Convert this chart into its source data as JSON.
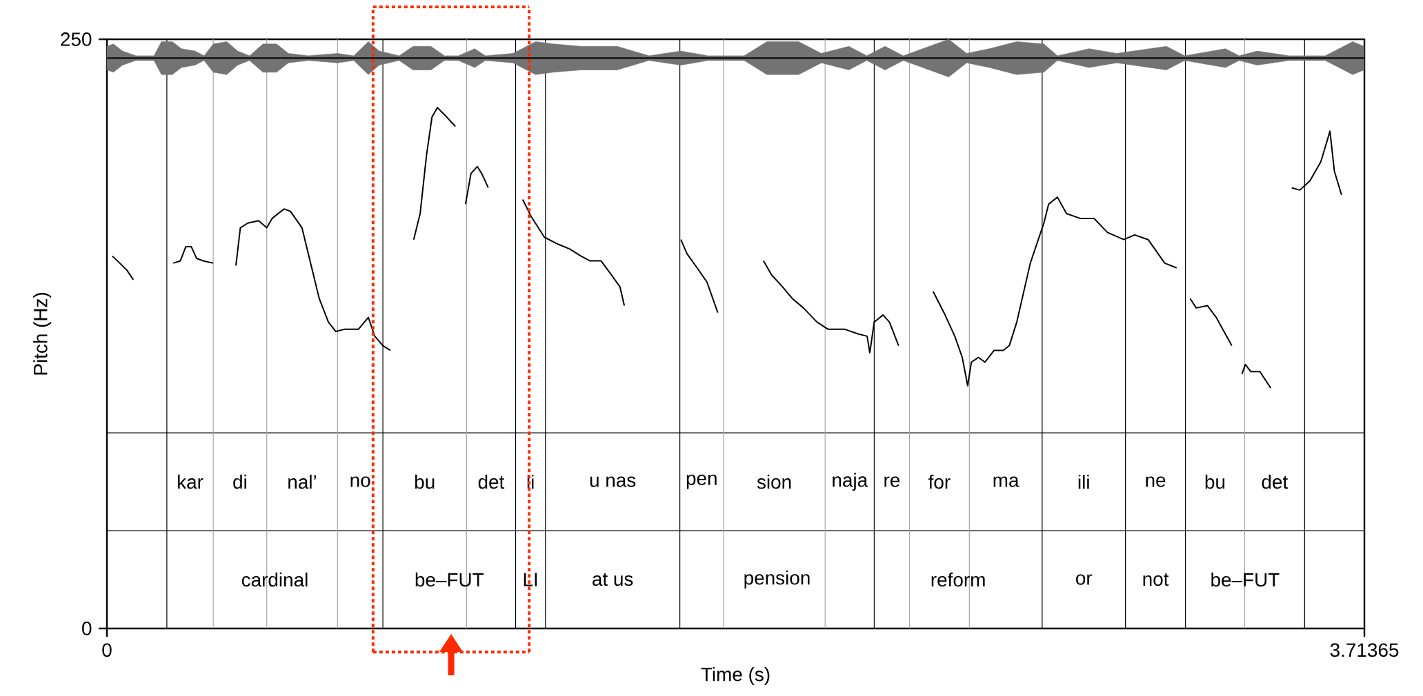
{
  "chart_data": {
    "type": "line",
    "xlabel": "Time (s)",
    "ylabel": "Pitch (Hz)",
    "xlim": [
      0,
      3.71365
    ],
    "ylim": [
      0,
      250
    ],
    "xticks": [
      0,
      3.71365
    ],
    "yticks": [
      0,
      250
    ],
    "series": [
      {
        "color": "#000000",
        "x": [
          0.016,
          0.038,
          0.059,
          0.078,
          null,
          0.196,
          0.217,
          0.233,
          0.249,
          0.265,
          0.284,
          0.314,
          null,
          0.381,
          0.394,
          0.416,
          0.448,
          0.472,
          0.488,
          0.523,
          0.542,
          0.576,
          0.627,
          0.654,
          0.676,
          0.703,
          0.743,
          0.772,
          0.791,
          0.815,
          0.837,
          null,
          0.906,
          0.925,
          0.944,
          0.96,
          0.976,
          0.997,
          1.029,
          null,
          1.059,
          1.075,
          1.094,
          1.107,
          1.126,
          null,
          1.228,
          1.252,
          1.292,
          1.333,
          1.367,
          1.4,
          1.426,
          1.459,
          1.485,
          1.515,
          1.528,
          null,
          1.695,
          1.713,
          1.743,
          1.772,
          1.804,
          null,
          1.939,
          1.963,
          1.995,
          2.024,
          2.057,
          2.097,
          2.129,
          2.178,
          2.218,
          2.245,
          2.253,
          2.266,
          2.292,
          2.311,
          2.338,
          null,
          2.44,
          2.472,
          2.504,
          2.526,
          2.542,
          2.553,
          2.574,
          2.593,
          2.62,
          2.647,
          2.665,
          2.687,
          2.727,
          2.767,
          2.781,
          2.807,
          2.834,
          2.874,
          2.915,
          2.955,
          3.003,
          3.035,
          3.075,
          3.124,
          3.159,
          null,
          3.199,
          3.217,
          3.25,
          3.276,
          3.322,
          null,
          3.352,
          3.362,
          3.378,
          3.405,
          3.437,
          null,
          3.499,
          3.523,
          3.553,
          3.585,
          3.612,
          3.625,
          3.646
        ],
        "values": [
          158,
          155,
          152,
          148,
          null,
          155,
          156,
          162,
          162,
          157,
          156,
          155,
          null,
          154,
          170,
          172,
          173,
          170,
          174,
          178,
          177,
          170,
          140,
          130,
          126,
          127,
          127,
          132,
          124,
          120,
          118,
          null,
          165,
          176,
          201,
          217,
          221,
          218,
          213,
          null,
          180,
          193,
          196,
          193,
          187,
          null,
          182,
          175,
          166,
          163,
          161,
          158,
          156,
          156,
          151,
          145,
          137,
          null,
          165,
          159,
          153,
          147,
          134,
          null,
          156,
          150,
          145,
          140,
          136,
          130,
          127,
          127,
          125,
          124,
          117,
          130,
          133,
          130,
          120,
          null,
          143,
          134,
          124,
          115,
          103,
          113,
          115,
          113,
          118,
          118,
          120,
          130,
          155,
          172,
          180,
          183,
          176,
          174,
          174,
          168,
          165,
          167,
          165,
          155,
          153,
          null,
          140,
          136,
          137,
          132,
          120,
          null,
          108,
          112,
          109,
          109,
          102,
          null,
          187,
          186,
          190,
          198,
          211,
          194,
          184
        ]
      },
      {
        "color": "#000000",
        "x": [
          0.0,
          0.019,
          0.046,
          0.086,
          0.139,
          0.161,
          0.193,
          0.22,
          0.26,
          0.287,
          0.314,
          0.354,
          0.386,
          0.421,
          0.461,
          0.501,
          0.536,
          0.595,
          0.681,
          0.729,
          0.772,
          0.804,
          0.863,
          0.904,
          0.957,
          0.997,
          1.038,
          1.086,
          1.118,
          1.199,
          1.266,
          1.319,
          1.4,
          1.507,
          1.601,
          1.695,
          1.775,
          1.882,
          1.949,
          2.043,
          2.11,
          2.191,
          2.244,
          2.298,
          2.352,
          2.486,
          2.539,
          2.606,
          2.687,
          2.767,
          2.807,
          2.901,
          2.982,
          3.129,
          3.183,
          3.303,
          3.344,
          3.397,
          3.491,
          3.598,
          3.679,
          3.713
        ],
        "values": [
          242,
          242,
          242,
          242,
          242,
          242,
          242,
          242,
          242,
          242,
          242,
          242,
          242,
          242,
          242,
          242,
          242,
          242,
          242,
          242,
          242,
          242,
          242,
          242,
          242,
          242,
          242,
          242,
          242,
          242,
          242,
          242,
          242,
          242,
          242,
          242,
          242,
          242,
          242,
          242,
          242,
          242,
          242,
          242,
          242,
          242,
          242,
          242,
          242,
          242,
          242,
          242,
          242,
          242,
          242,
          242,
          242,
          242,
          242,
          242,
          242,
          242
        ],
        "lower": [
          237,
          236,
          239,
          241,
          241,
          235,
          235,
          238,
          239,
          241,
          236,
          235,
          239,
          241,
          236,
          236,
          240,
          241,
          240,
          241,
          235,
          239,
          241,
          237,
          237,
          241,
          241,
          238,
          241,
          240,
          235,
          236,
          237,
          237,
          241,
          239,
          241,
          241,
          235,
          235,
          240,
          237,
          241,
          237,
          241,
          234,
          240,
          238,
          235,
          236,
          241,
          238,
          240,
          237,
          241,
          238,
          241,
          239,
          241,
          241,
          235,
          237
        ],
        "upper": [
          247,
          248,
          245,
          243,
          243,
          249,
          249,
          246,
          245,
          243,
          248,
          249,
          245,
          243,
          248,
          248,
          244,
          243,
          244,
          243,
          249,
          245,
          243,
          247,
          247,
          243,
          243,
          246,
          243,
          244,
          249,
          248,
          247,
          247,
          243,
          245,
          243,
          243,
          249,
          249,
          244,
          247,
          243,
          247,
          243,
          250,
          244,
          246,
          249,
          248,
          243,
          246,
          244,
          247,
          243,
          246,
          243,
          245,
          243,
          243,
          249,
          247
        ]
      }
    ],
    "ref_lines": [
      {
        "axis": "y",
        "value": 83,
        "color": "#000000"
      },
      {
        "axis": "y",
        "value": 41.5,
        "color": "#000000"
      },
      {
        "axis": "x",
        "value": 0.177,
        "color": "#000000"
      },
      {
        "axis": "x",
        "value": 0.314,
        "color": "#a6a6a6"
      },
      {
        "axis": "x",
        "value": 0.472,
        "color": "#a6a6a6"
      },
      {
        "axis": "x",
        "value": 0.681,
        "color": "#a6a6a6"
      },
      {
        "axis": "x",
        "value": 0.815,
        "color": "#000000"
      },
      {
        "axis": "x",
        "value": 1.062,
        "color": "#a6a6a6"
      },
      {
        "axis": "x",
        "value": 1.207,
        "color": "#000000"
      },
      {
        "axis": "x",
        "value": 1.295,
        "color": "#000000"
      },
      {
        "axis": "x",
        "value": 1.692,
        "color": "#000000"
      },
      {
        "axis": "x",
        "value": 1.821,
        "color": "#a6a6a6"
      },
      {
        "axis": "x",
        "value": 2.121,
        "color": "#a6a6a6"
      },
      {
        "axis": "x",
        "value": 2.266,
        "color": "#000000"
      },
      {
        "axis": "x",
        "value": 2.37,
        "color": "#a6a6a6"
      },
      {
        "axis": "x",
        "value": 2.547,
        "color": "#a6a6a6"
      },
      {
        "axis": "x",
        "value": 2.762,
        "color": "#000000"
      },
      {
        "axis": "x",
        "value": 3.008,
        "color": "#000000"
      },
      {
        "axis": "x",
        "value": 3.185,
        "color": "#000000"
      },
      {
        "axis": "x",
        "value": 3.36,
        "color": "#a6a6a6"
      },
      {
        "axis": "x",
        "value": 3.537,
        "color": "#000000"
      },
      {
        "axis": "x",
        "value": 0.786,
        "color": "#ff2a00",
        "line_style": "dotted"
      },
      {
        "axis": "x",
        "value": 1.247,
        "color": "#ff2a00",
        "line_style": "dotted"
      }
    ],
    "annotations": [
      "kar",
      "di",
      "nal’",
      "no",
      "bu",
      "det",
      "li",
      "u nas",
      "pen",
      "sion",
      "naja",
      "re",
      "for",
      "ma",
      "ili",
      "ne",
      "bu",
      "det",
      "cardinal",
      "be–FUT",
      "LI",
      "at us",
      "pension",
      "reform",
      "or",
      "not",
      "be–FUT"
    ]
  }
}
